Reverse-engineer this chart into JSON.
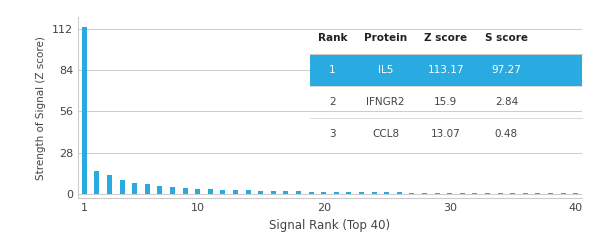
{
  "title": "",
  "xlabel": "Signal Rank (Top 40)",
  "ylabel": "Strength of Signal (Z score)",
  "xlim": [
    0.5,
    40.5
  ],
  "ylim": [
    -3,
    120
  ],
  "yticks": [
    0,
    28,
    56,
    84,
    112
  ],
  "xticks": [
    1,
    10,
    20,
    30,
    40
  ],
  "bar_color": "#29ABE2",
  "background_color": "#ffffff",
  "grid_color": "#cccccc",
  "bar_values": [
    113.17,
    15.9,
    13.07,
    9.5,
    7.8,
    6.5,
    5.5,
    4.8,
    4.2,
    3.7,
    3.3,
    3.0,
    2.7,
    2.5,
    2.3,
    2.1,
    2.0,
    1.85,
    1.7,
    1.6,
    1.5,
    1.4,
    1.3,
    1.2,
    1.1,
    1.05,
    1.0,
    0.95,
    0.9,
    0.85,
    0.8,
    0.75,
    0.7,
    0.65,
    0.6,
    0.55,
    0.5,
    0.45,
    0.4,
    0.35
  ],
  "bar_width": 0.4,
  "table_header": [
    "Rank",
    "Protein",
    "Z score",
    "S score"
  ],
  "table_rows": [
    [
      "1",
      "IL5",
      "113.17",
      "97.27"
    ],
    [
      "2",
      "IFNGR2",
      "15.9",
      "2.84"
    ],
    [
      "3",
      "CCL8",
      "13.07",
      "0.48"
    ]
  ],
  "table_highlight_color": "#29ABE2",
  "table_highlight_text": "#ffffff",
  "table_normal_text": "#444444",
  "table_header_text": "#222222",
  "separator_color": "#cccccc"
}
